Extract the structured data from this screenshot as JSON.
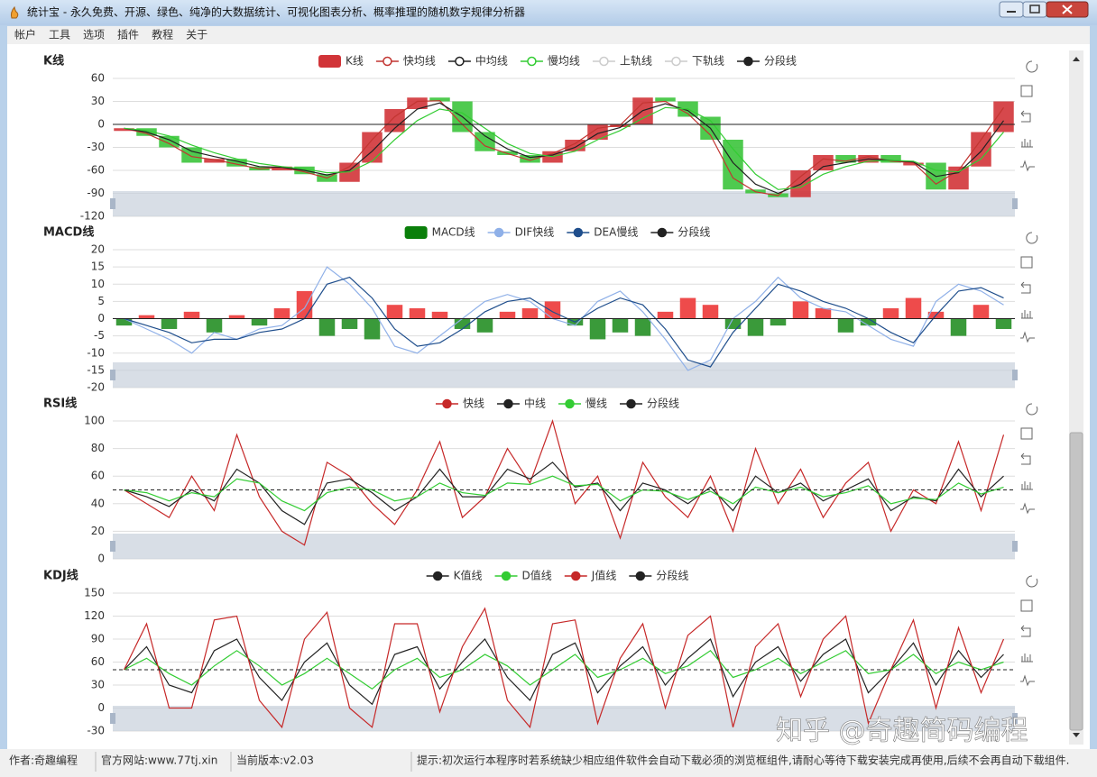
{
  "window": {
    "title": "统计宝 - 永久免费、开源、绿色、纯净的大数据统计、可视化图表分析、概率推理的随机数字规律分析器"
  },
  "menu": [
    "帐户",
    "工具",
    "选项",
    "插件",
    "教程",
    "关于"
  ],
  "chart_data": [
    {
      "type": "kline",
      "title": "K线",
      "legend_symbol": "emptyCircle",
      "ylim": [
        -120,
        60
      ],
      "yticks": [
        60,
        30,
        0,
        -30,
        -60,
        -90,
        -120
      ],
      "grid": true,
      "series": [
        {
          "name": "K线",
          "type": "kline",
          "color": "#d13438",
          "down_color": "#3cc43c",
          "values": [
            -5,
            -15,
            -30,
            -50,
            -45,
            -55,
            -60,
            -55,
            -65,
            -75,
            -50,
            -10,
            20,
            35,
            30,
            -10,
            -35,
            -40,
            -50,
            -35,
            -20,
            0,
            0,
            35,
            30,
            10,
            -20,
            -85,
            -90,
            -95,
            -60,
            -40,
            -50,
            -40,
            -50,
            -50,
            -85,
            -55,
            -10,
            30
          ]
        },
        {
          "name": "快均线",
          "type": "line",
          "color": "#c23531",
          "values": [
            -5,
            -12,
            -25,
            -42,
            -46,
            -52,
            -58,
            -56,
            -62,
            -70,
            -55,
            -20,
            10,
            30,
            31,
            0,
            -28,
            -38,
            -47,
            -38,
            -25,
            -5,
            -1,
            28,
            30,
            14,
            -14,
            -70,
            -88,
            -93,
            -68,
            -45,
            -48,
            -42,
            -48,
            -50,
            -78,
            -60,
            -20,
            22
          ]
        },
        {
          "name": "中均线",
          "type": "line",
          "color": "#222222",
          "values": [
            -5,
            -10,
            -20,
            -35,
            -42,
            -48,
            -55,
            -56,
            -60,
            -66,
            -60,
            -35,
            -5,
            20,
            28,
            10,
            -15,
            -32,
            -43,
            -40,
            -30,
            -12,
            -4,
            18,
            27,
            18,
            -5,
            -50,
            -78,
            -90,
            -78,
            -55,
            -50,
            -45,
            -47,
            -49,
            -68,
            -63,
            -35,
            5
          ]
        },
        {
          "name": "慢均线",
          "type": "line",
          "color": "#33cc33",
          "values": [
            -5,
            -8,
            -15,
            -27,
            -37,
            -45,
            -51,
            -55,
            -58,
            -63,
            -62,
            -48,
            -20,
            5,
            20,
            15,
            -5,
            -25,
            -38,
            -42,
            -35,
            -20,
            -8,
            8,
            22,
            20,
            5,
            -32,
            -65,
            -85,
            -82,
            -65,
            -55,
            -48,
            -47,
            -48,
            -60,
            -62,
            -45,
            -10
          ]
        },
        {
          "name": "上轨线",
          "type": "line",
          "color": "#cccccc",
          "visible": false
        },
        {
          "name": "下轨线",
          "type": "line",
          "color": "#cccccc",
          "visible": false
        },
        {
          "name": "分段线",
          "type": "refline",
          "color": "#222222",
          "value": 0,
          "dashed": false
        }
      ]
    },
    {
      "type": "macd",
      "title": "MACD线",
      "ylim": [
        -20,
        20
      ],
      "yticks": [
        20,
        15,
        10,
        5,
        0,
        -5,
        -10,
        -15,
        -20
      ],
      "grid": true,
      "series": [
        {
          "name": "MACD线",
          "type": "bar",
          "color": "#0a7f0a",
          "up_color": "#ee4b4b",
          "down_color": "#3a9a3a",
          "values": [
            -2,
            1,
            -3,
            2,
            -4,
            1,
            -2,
            3,
            8,
            -5,
            -3,
            -6,
            4,
            3,
            2,
            -3,
            -4,
            2,
            3,
            5,
            -2,
            -6,
            -4,
            -5,
            2,
            6,
            4,
            -3,
            -5,
            -2,
            5,
            3,
            -4,
            -2,
            3,
            6,
            2,
            -5,
            4,
            -3
          ]
        },
        {
          "name": "DIF快线",
          "type": "line",
          "color": "#8fb0e8",
          "values": [
            0,
            -3,
            -6,
            -10,
            -4,
            -6,
            -3,
            -2,
            3,
            15,
            10,
            3,
            -8,
            -10,
            -5,
            0,
            5,
            7,
            5,
            0,
            -2,
            5,
            8,
            2,
            -6,
            -15,
            -12,
            0,
            5,
            12,
            6,
            3,
            2,
            -2,
            -6,
            -8,
            5,
            10,
            8,
            4
          ]
        },
        {
          "name": "DEA慢线",
          "type": "line",
          "color": "#1f4e8c",
          "values": [
            0,
            -2,
            -4,
            -7,
            -6,
            -6,
            -4,
            -3,
            0,
            10,
            12,
            6,
            -3,
            -8,
            -7,
            -3,
            2,
            5,
            6,
            2,
            -1,
            3,
            6,
            4,
            -3,
            -12,
            -14,
            -4,
            3,
            10,
            8,
            5,
            3,
            0,
            -4,
            -7,
            1,
            8,
            9,
            6
          ]
        },
        {
          "name": "分段线",
          "type": "refline",
          "color": "#222222",
          "value": 0,
          "dashed": false
        }
      ]
    },
    {
      "type": "line",
      "title": "RSI线",
      "ylim": [
        0,
        100
      ],
      "yticks": [
        100,
        80,
        60,
        40,
        20,
        0
      ],
      "grid": true,
      "series": [
        {
          "name": "快线",
          "type": "line",
          "color": "#c62828",
          "values": [
            50,
            40,
            30,
            60,
            35,
            90,
            45,
            20,
            10,
            70,
            60,
            40,
            25,
            50,
            85,
            30,
            45,
            80,
            55,
            100,
            40,
            60,
            15,
            70,
            45,
            30,
            60,
            20,
            80,
            40,
            65,
            30,
            55,
            70,
            20,
            50,
            40,
            85,
            35,
            90
          ]
        },
        {
          "name": "中线",
          "type": "line",
          "color": "#222222",
          "values": [
            50,
            45,
            38,
            50,
            42,
            65,
            55,
            35,
            25,
            55,
            58,
            48,
            35,
            45,
            65,
            45,
            45,
            65,
            58,
            70,
            52,
            55,
            35,
            55,
            50,
            40,
            52,
            35,
            60,
            48,
            55,
            42,
            50,
            58,
            35,
            45,
            42,
            65,
            45,
            60
          ]
        },
        {
          "name": "慢线",
          "type": "line",
          "color": "#33cc33",
          "values": [
            50,
            48,
            42,
            48,
            45,
            58,
            55,
            42,
            35,
            48,
            52,
            50,
            42,
            45,
            55,
            48,
            46,
            55,
            54,
            60,
            53,
            54,
            42,
            50,
            49,
            43,
            49,
            40,
            52,
            48,
            52,
            45,
            48,
            53,
            40,
            44,
            43,
            55,
            47,
            52
          ]
        },
        {
          "name": "分段线",
          "type": "refline",
          "color": "#222222",
          "value": 50,
          "dashed": true
        }
      ]
    },
    {
      "type": "line",
      "title": "KDJ线",
      "ylim": [
        -30,
        150
      ],
      "yticks": [
        150,
        120,
        90,
        60,
        30,
        0,
        -30
      ],
      "grid": true,
      "series": [
        {
          "name": "K值线",
          "type": "line",
          "color": "#222222",
          "values": [
            50,
            80,
            30,
            20,
            75,
            90,
            40,
            10,
            60,
            85,
            30,
            5,
            70,
            80,
            25,
            60,
            90,
            40,
            10,
            70,
            85,
            20,
            55,
            80,
            30,
            65,
            90,
            15,
            60,
            80,
            35,
            70,
            90,
            20,
            50,
            85,
            30,
            75,
            40,
            70
          ]
        },
        {
          "name": "D值线",
          "type": "line",
          "color": "#33cc33",
          "values": [
            50,
            65,
            45,
            30,
            55,
            75,
            55,
            30,
            45,
            65,
            45,
            25,
            50,
            65,
            40,
            50,
            70,
            55,
            30,
            50,
            70,
            40,
            50,
            65,
            45,
            55,
            75,
            40,
            50,
            65,
            45,
            60,
            75,
            45,
            50,
            70,
            45,
            60,
            50,
            60
          ]
        },
        {
          "name": "J值线",
          "type": "line",
          "color": "#c62828",
          "values": [
            50,
            110,
            0,
            0,
            115,
            120,
            10,
            -25,
            90,
            125,
            0,
            -25,
            110,
            110,
            -5,
            80,
            130,
            10,
            -25,
            110,
            115,
            -20,
            65,
            110,
            0,
            95,
            120,
            -25,
            80,
            110,
            15,
            90,
            120,
            -20,
            50,
            115,
            0,
            105,
            20,
            90
          ]
        },
        {
          "name": "分段线",
          "type": "refline",
          "color": "#222222",
          "value": 50,
          "dashed": true
        }
      ]
    }
  ],
  "watermark": "知乎 @奇趣简码编程",
  "status": [
    "作者:奇趣编程",
    "官方网站:www.77tj.xin",
    "当前版本:v2.03",
    "提示:初次运行本程序时若系统缺少相应组件软件会自动下载必须的浏览框组件,请耐心等待下载安装完成再使用,后续不会再自动下载组件."
  ]
}
